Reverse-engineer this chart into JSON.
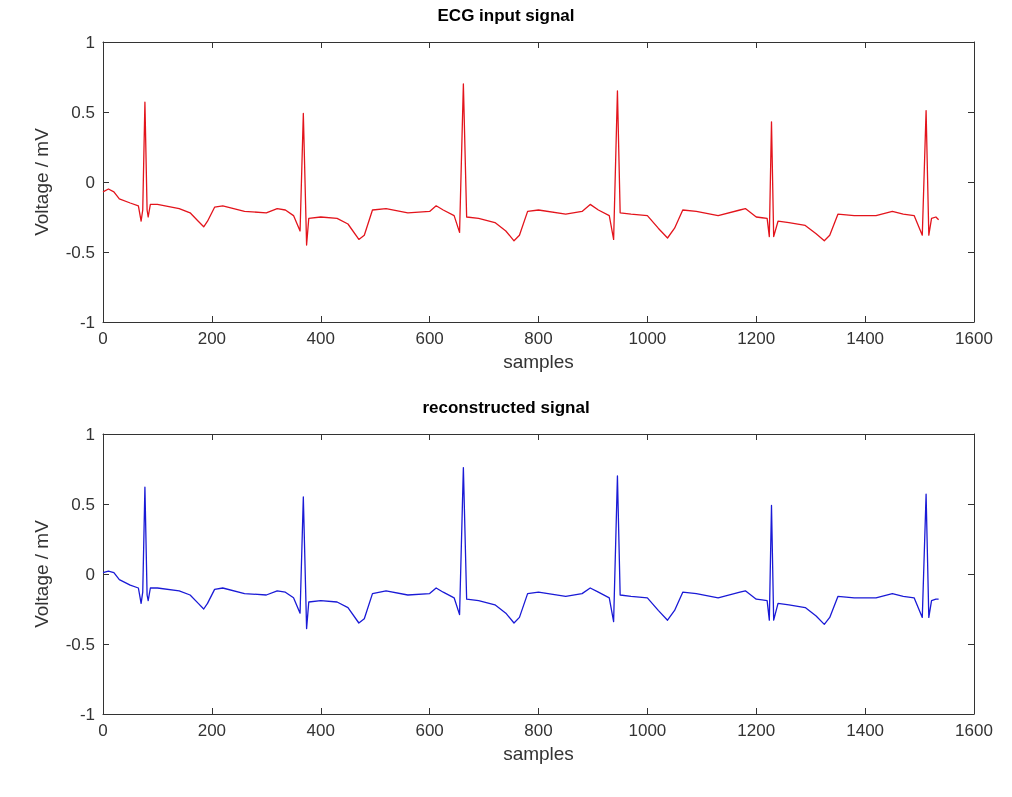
{
  "chart_data": [
    {
      "type": "line",
      "title": "ECG input signal",
      "xlabel": "samples",
      "ylabel": "Voltage / mV",
      "xlim": [
        0,
        1600
      ],
      "xticks": [
        0,
        200,
        400,
        600,
        800,
        1000,
        1200,
        1400,
        1600
      ],
      "ylim": [
        -1,
        1
      ],
      "yticks": [
        -1,
        -0.5,
        0,
        0.5,
        1
      ],
      "series": [
        {
          "color": "#e3141c",
          "x": [
            0,
            10,
            20,
            30,
            50,
            65,
            70,
            73,
            77,
            81,
            83,
            87,
            100,
            140,
            160,
            175,
            185,
            192,
            205,
            220,
            260,
            300,
            320,
            335,
            350,
            362,
            368,
            374,
            378,
            400,
            430,
            450,
            470,
            480,
            495,
            520,
            560,
            600,
            612,
            625,
            645,
            655,
            662,
            668,
            690,
            720,
            740,
            755,
            765,
            780,
            800,
            850,
            880,
            895,
            910,
            930,
            938,
            945,
            950,
            970,
            1000,
            1020,
            1037,
            1050,
            1065,
            1090,
            1130,
            1170,
            1180,
            1200,
            1220,
            1224,
            1228,
            1232,
            1240,
            1260,
            1290,
            1310,
            1325,
            1335,
            1350,
            1380,
            1420,
            1450,
            1470,
            1490,
            1505,
            1512,
            1517,
            1522,
            1530,
            1535
          ],
          "values": [
            -0.07,
            -0.05,
            -0.07,
            -0.12,
            -0.15,
            -0.17,
            -0.28,
            -0.2,
            0.57,
            -0.2,
            -0.25,
            -0.16,
            -0.16,
            -0.19,
            -0.22,
            -0.28,
            -0.32,
            -0.28,
            -0.18,
            -0.17,
            -0.21,
            -0.22,
            -0.19,
            -0.2,
            -0.24,
            -0.35,
            0.49,
            -0.45,
            -0.26,
            -0.25,
            -0.26,
            -0.3,
            -0.41,
            -0.38,
            -0.2,
            -0.19,
            -0.22,
            -0.21,
            -0.17,
            -0.2,
            -0.24,
            -0.36,
            0.7,
            -0.25,
            -0.26,
            -0.29,
            -0.35,
            -0.42,
            -0.38,
            -0.21,
            -0.2,
            -0.23,
            -0.21,
            -0.16,
            -0.2,
            -0.24,
            -0.41,
            0.65,
            -0.22,
            -0.23,
            -0.24,
            -0.33,
            -0.4,
            -0.33,
            -0.2,
            -0.21,
            -0.24,
            -0.2,
            -0.19,
            -0.25,
            -0.26,
            -0.39,
            0.43,
            -0.39,
            -0.28,
            -0.29,
            -0.31,
            -0.37,
            -0.42,
            -0.38,
            -0.23,
            -0.24,
            -0.24,
            -0.21,
            -0.23,
            -0.24,
            -0.38,
            0.51,
            -0.38,
            -0.26,
            -0.25,
            -0.27
          ]
        }
      ]
    },
    {
      "type": "line",
      "title": "reconstructed signal",
      "xlabel": "samples",
      "ylabel": "Voltage / mV",
      "xlim": [
        0,
        1600
      ],
      "xticks": [
        0,
        200,
        400,
        600,
        800,
        1000,
        1200,
        1400,
        1600
      ],
      "ylim": [
        -1,
        1
      ],
      "yticks": [
        -1,
        -0.5,
        0,
        0.5,
        1
      ],
      "series": [
        {
          "color": "#1a1ad6",
          "x": [
            0,
            10,
            20,
            30,
            50,
            65,
            70,
            73,
            77,
            81,
            83,
            87,
            100,
            140,
            160,
            175,
            185,
            192,
            205,
            220,
            260,
            300,
            320,
            335,
            350,
            362,
            368,
            374,
            378,
            400,
            430,
            450,
            470,
            480,
            495,
            520,
            560,
            600,
            612,
            625,
            645,
            655,
            662,
            668,
            690,
            720,
            740,
            755,
            765,
            780,
            800,
            850,
            880,
            895,
            910,
            930,
            938,
            945,
            950,
            970,
            1000,
            1020,
            1037,
            1050,
            1065,
            1090,
            1130,
            1170,
            1180,
            1200,
            1220,
            1224,
            1228,
            1232,
            1240,
            1260,
            1290,
            1310,
            1325,
            1335,
            1350,
            1380,
            1420,
            1450,
            1470,
            1490,
            1505,
            1512,
            1517,
            1522,
            1530,
            1535
          ],
          "values": [
            0.01,
            0.02,
            0.01,
            -0.04,
            -0.08,
            -0.1,
            -0.21,
            -0.13,
            0.62,
            -0.15,
            -0.19,
            -0.1,
            -0.1,
            -0.12,
            -0.15,
            -0.21,
            -0.25,
            -0.21,
            -0.11,
            -0.1,
            -0.14,
            -0.15,
            -0.12,
            -0.13,
            -0.17,
            -0.28,
            0.55,
            -0.39,
            -0.2,
            -0.19,
            -0.2,
            -0.24,
            -0.35,
            -0.32,
            -0.14,
            -0.12,
            -0.15,
            -0.14,
            -0.1,
            -0.13,
            -0.17,
            -0.29,
            0.76,
            -0.18,
            -0.19,
            -0.22,
            -0.28,
            -0.35,
            -0.31,
            -0.14,
            -0.13,
            -0.16,
            -0.14,
            -0.1,
            -0.13,
            -0.17,
            -0.34,
            0.7,
            -0.15,
            -0.16,
            -0.17,
            -0.26,
            -0.33,
            -0.26,
            -0.13,
            -0.14,
            -0.17,
            -0.13,
            -0.12,
            -0.18,
            -0.19,
            -0.33,
            0.49,
            -0.33,
            -0.21,
            -0.22,
            -0.24,
            -0.3,
            -0.36,
            -0.31,
            -0.16,
            -0.17,
            -0.17,
            -0.14,
            -0.16,
            -0.17,
            -0.31,
            0.57,
            -0.31,
            -0.19,
            -0.18,
            -0.18
          ]
        }
      ]
    }
  ]
}
